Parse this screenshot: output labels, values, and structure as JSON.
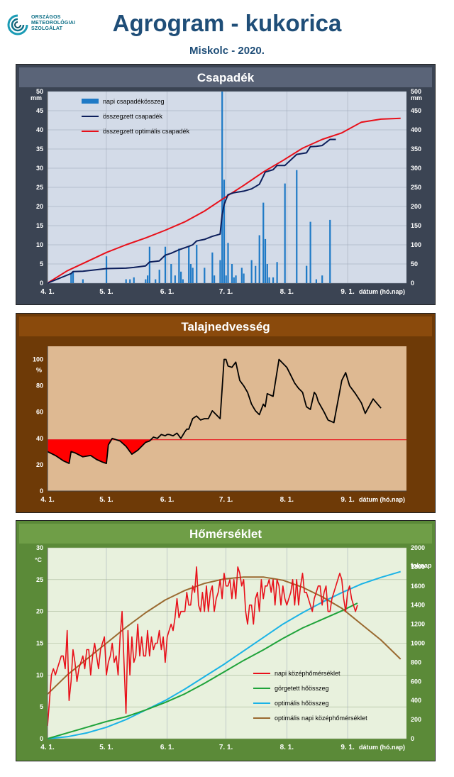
{
  "logo": {
    "lines": [
      "ORSZÁGOS",
      "METEOROLÓGIAI",
      "SZOLGÁLAT"
    ]
  },
  "header": {
    "title": "Agrogram - kukorica",
    "subtitle": "Miskolc - 2020."
  },
  "x_axis": {
    "ticks": [
      "4. 1.",
      "5. 1.",
      "6. 1.",
      "7. 1.",
      "8. 1.",
      "9. 1."
    ],
    "tick_days": [
      0,
      30,
      61,
      91,
      122,
      153
    ],
    "label": "dátum (hó.nap)"
  },
  "colors": {
    "precip_panel_bg": "#3b4453",
    "precip_plot_bg": "#d3dbe8",
    "soil_panel_bg": "#6e3a07",
    "soil_plot_bg": "#deb992",
    "temp_panel_bg": "#5b8a38",
    "temp_plot_bg": "#e8f1dd"
  },
  "chart_data": [
    {
      "type": "bar",
      "title": "Csapadék",
      "ylabel_left": "mm",
      "ylabel_right": "mm",
      "ylim_left": [
        0,
        50
      ],
      "ylim_right": [
        0,
        500
      ],
      "left_ticks": [
        "0",
        "5",
        "10",
        "15",
        "20",
        "25",
        "30",
        "35",
        "40",
        "45",
        "50"
      ],
      "right_ticks": [
        "0",
        "50",
        "100",
        "150",
        "200",
        "250",
        "300",
        "350",
        "400",
        "450",
        "500"
      ],
      "legend": [
        "napi csapadékösszeg",
        "összegzett csapadék",
        "összegzett optimális csapadék"
      ],
      "legend_position": "top-left",
      "grid": true,
      "series": [
        {
          "name": "napi csapadékösszeg",
          "color": "#1f7ac6",
          "kind": "bar",
          "x": [
            12,
            13,
            18,
            30,
            40,
            42,
            44,
            50,
            51,
            52,
            55,
            57,
            60,
            63,
            65,
            67,
            68,
            69,
            72,
            73,
            74,
            76,
            80,
            84,
            85,
            88,
            89,
            90,
            91,
            92,
            94,
            95,
            96,
            99,
            100,
            104,
            106,
            108,
            110,
            111,
            112,
            113,
            115,
            117,
            121,
            127,
            132,
            132,
            134,
            137,
            140,
            144
          ],
          "values": [
            2.5,
            3.0,
            1.0,
            7.0,
            1.0,
            1.0,
            1.5,
            1.0,
            2.0,
            9.5,
            1.0,
            3.5,
            9.5,
            5.0,
            2.0,
            9.0,
            3.0,
            1.0,
            9.5,
            5.0,
            4.0,
            10.0,
            4.0,
            8.0,
            2.0,
            6.0,
            50.0,
            27.0,
            2.0,
            10.5,
            5.0,
            1.5,
            2.0,
            4.0,
            2.5,
            6.0,
            4.5,
            12.5,
            21.0,
            11.5,
            5.0,
            1.5,
            1.5,
            5.5,
            26.0,
            29.5,
            4.5,
            4.5,
            16.0,
            1.0,
            2.0,
            16.5
          ]
        },
        {
          "name": "összegzett csapadék",
          "color": "#0d1f5c",
          "kind": "line",
          "axis": "right",
          "x": [
            0,
            12,
            13,
            18,
            30,
            40,
            44,
            50,
            52,
            57,
            60,
            63,
            67,
            72,
            74,
            76,
            80,
            84,
            88,
            89,
            90,
            92,
            95,
            100,
            104,
            108,
            110,
            111,
            115,
            117,
            121,
            127,
            132,
            134,
            137,
            140,
            144,
            147
          ],
          "values": [
            0,
            25,
            30,
            31,
            38,
            39,
            41,
            45,
            55,
            58,
            73,
            78,
            87,
            96,
            100,
            110,
            114,
            122,
            128,
            178,
            205,
            231,
            236,
            240,
            246,
            258,
            279,
            290,
            296,
            307,
            307,
            336,
            340,
            356,
            357,
            359,
            375,
            375
          ]
        },
        {
          "name": "összegzett optimális csapadék",
          "color": "#e8101a",
          "kind": "line",
          "axis": "right",
          "x": [
            0,
            10,
            20,
            30,
            40,
            50,
            60,
            70,
            80,
            90,
            100,
            110,
            120,
            130,
            140,
            150,
            160,
            170,
            180
          ],
          "values": [
            0,
            32,
            56,
            80,
            100,
            118,
            138,
            160,
            188,
            222,
            255,
            290,
            320,
            352,
            375,
            392,
            420,
            428,
            430
          ]
        }
      ]
    },
    {
      "type": "area",
      "title": "Talajnedvesség",
      "ylabel": "%",
      "ylim": [
        0,
        110
      ],
      "ticks": [
        "0",
        "20",
        "40",
        "60",
        "80",
        "100"
      ],
      "threshold": 39,
      "threshold_color": "#e8101a",
      "grid": false,
      "series": [
        {
          "name": "",
          "color": "#000000",
          "x": [
            0,
            4,
            8,
            11,
            12,
            14,
            18,
            22,
            25,
            28,
            30,
            31,
            33,
            37,
            40,
            42,
            43,
            46,
            50,
            52,
            54,
            56,
            58,
            60,
            61,
            62,
            64,
            66,
            68,
            70,
            71,
            72,
            74,
            76,
            78,
            80,
            82,
            84,
            86,
            88,
            90,
            91,
            92,
            94,
            96,
            98,
            100,
            102,
            104,
            106,
            108,
            110,
            111,
            112,
            115,
            118,
            120,
            122,
            124,
            126,
            128,
            130,
            132,
            134,
            136,
            137,
            138,
            141,
            143,
            146,
            150,
            152,
            154,
            157,
            160,
            162,
            166,
            170
          ],
          "values": [
            30,
            27,
            23,
            21,
            30,
            29,
            26,
            27,
            24,
            22,
            21,
            35,
            40,
            38,
            34,
            30,
            28,
            31,
            37,
            38,
            41,
            40,
            43,
            42,
            43,
            43,
            42,
            44,
            40,
            45,
            47,
            47,
            55,
            57,
            54,
            55,
            55,
            61,
            58,
            55,
            100,
            100,
            95,
            94,
            98,
            84,
            80,
            75,
            66,
            61,
            58,
            66,
            64,
            74,
            72,
            100,
            97,
            94,
            88,
            82,
            78,
            75,
            64,
            62,
            75,
            73,
            68,
            60,
            54,
            52,
            84,
            90,
            80,
            74,
            67,
            59,
            70,
            63
          ]
        }
      ]
    },
    {
      "type": "line",
      "title": "Hőmérséklet",
      "ylabel_left": "°C",
      "ylabel_right": "foknap",
      "ylim_left": [
        0,
        30
      ],
      "ylim_right": [
        0,
        2000
      ],
      "left_ticks": [
        "0",
        "5",
        "10",
        "15",
        "20",
        "25",
        "30"
      ],
      "right_ticks": [
        "0",
        "200",
        "400",
        "600",
        "800",
        "1000",
        "1200",
        "1400",
        "1600",
        "1800",
        "2000"
      ],
      "legend": [
        "napi középhőmérséklet",
        "görgetett hőösszeg",
        "optimális hőösszeg",
        "optimális napi középhőmérséklet"
      ],
      "legend_position": "bottom-right",
      "grid": true,
      "series": [
        {
          "name": "napi középhőmérséklet",
          "color": "#e8101a",
          "axis": "left",
          "x": [
            0,
            1,
            2,
            3,
            4,
            5,
            6,
            7,
            8,
            9,
            10,
            11,
            12,
            13,
            14,
            15,
            16,
            17,
            18,
            19,
            20,
            21,
            22,
            23,
            24,
            25,
            26,
            27,
            28,
            29,
            30,
            31,
            32,
            33,
            34,
            35,
            36,
            37,
            38,
            39,
            40,
            41,
            42,
            43,
            44,
            45,
            46,
            47,
            48,
            49,
            50,
            51,
            52,
            53,
            54,
            55,
            56,
            57,
            58,
            59,
            60,
            61,
            62,
            63,
            64,
            65,
            66,
            67,
            68,
            69,
            70,
            71,
            72,
            73,
            74,
            75,
            76,
            77,
            78,
            79,
            80,
            81,
            82,
            83,
            84,
            85,
            86,
            87,
            88,
            89,
            90,
            91,
            92,
            93,
            94,
            95,
            96,
            97,
            98,
            99,
            100,
            101,
            102,
            103,
            104,
            105,
            106,
            107,
            108,
            109,
            110,
            111,
            112,
            113,
            114,
            115,
            116,
            117,
            118,
            119,
            120,
            121,
            122,
            123,
            124,
            125,
            126,
            127,
            128,
            129,
            130,
            131,
            132,
            133,
            134,
            135,
            136,
            137,
            138,
            139,
            140,
            141,
            142,
            143,
            144,
            145,
            146,
            147,
            148,
            149,
            150,
            151,
            152,
            153,
            154,
            155,
            156,
            157,
            158
          ],
          "values": [
            2,
            6,
            10,
            11,
            10,
            11,
            12,
            13,
            13,
            11,
            17,
            6,
            9,
            14,
            12,
            9,
            11,
            12,
            13,
            11,
            14,
            14,
            10,
            13,
            15,
            13,
            11,
            14,
            15,
            16,
            10,
            12,
            13,
            15,
            12,
            13,
            10,
            16,
            20,
            12,
            4,
            17,
            10,
            16,
            12,
            13,
            18,
            13,
            16,
            13,
            13,
            17,
            13,
            16,
            14,
            15,
            15,
            17,
            14,
            16,
            12,
            16,
            17,
            18,
            17,
            19,
            22,
            19,
            20,
            20,
            20,
            23,
            21,
            21,
            24,
            23,
            27,
            21,
            20,
            23,
            20,
            24,
            20,
            23,
            24,
            20,
            22,
            23,
            25,
            22,
            26,
            24,
            24,
            25,
            22,
            25,
            22,
            27,
            26,
            24,
            25,
            20,
            18,
            21,
            21,
            18,
            22,
            23,
            20,
            25,
            22,
            24,
            24,
            25,
            23,
            25,
            21,
            25,
            24,
            21,
            24,
            22,
            21,
            22,
            23,
            25,
            21,
            25,
            21,
            24,
            26,
            23,
            23,
            22,
            21,
            20,
            22,
            23,
            24,
            24,
            21,
            23,
            24,
            20,
            20,
            22,
            23,
            24,
            25,
            26,
            25,
            22,
            20,
            23,
            24,
            22,
            21,
            20,
            21
          ]
        },
        {
          "name": "görgetett hőösszeg",
          "color": "#1fa33a",
          "axis": "right",
          "x": [
            0,
            10,
            20,
            30,
            40,
            50,
            60,
            70,
            80,
            90,
            100,
            110,
            120,
            130,
            140,
            150,
            158
          ],
          "values": [
            0,
            60,
            120,
            180,
            230,
            300,
            380,
            470,
            580,
            700,
            820,
            930,
            1050,
            1160,
            1250,
            1340,
            1420
          ]
        },
        {
          "name": "optimális hőösszeg",
          "color": "#1ab3e6",
          "axis": "right",
          "x": [
            0,
            10,
            20,
            30,
            40,
            50,
            60,
            70,
            80,
            90,
            100,
            110,
            120,
            130,
            140,
            150,
            160,
            170,
            180
          ],
          "values": [
            0,
            20,
            60,
            120,
            200,
            300,
            400,
            520,
            650,
            780,
            920,
            1060,
            1200,
            1320,
            1430,
            1530,
            1620,
            1690,
            1750
          ]
        },
        {
          "name": "optimális napi középhőmérséklet",
          "color": "#9a6a30",
          "axis": "left",
          "x": [
            0,
            10,
            20,
            30,
            40,
            50,
            60,
            70,
            80,
            90,
            100,
            110,
            120,
            130,
            140,
            150,
            160,
            170,
            180
          ],
          "values": [
            7,
            10,
            12.5,
            15,
            17.5,
            19.8,
            21.8,
            23.3,
            24.4,
            25.1,
            25.4,
            25.4,
            24.9,
            23.8,
            22.3,
            20.5,
            18.0,
            15.5,
            12.5
          ]
        }
      ]
    }
  ]
}
